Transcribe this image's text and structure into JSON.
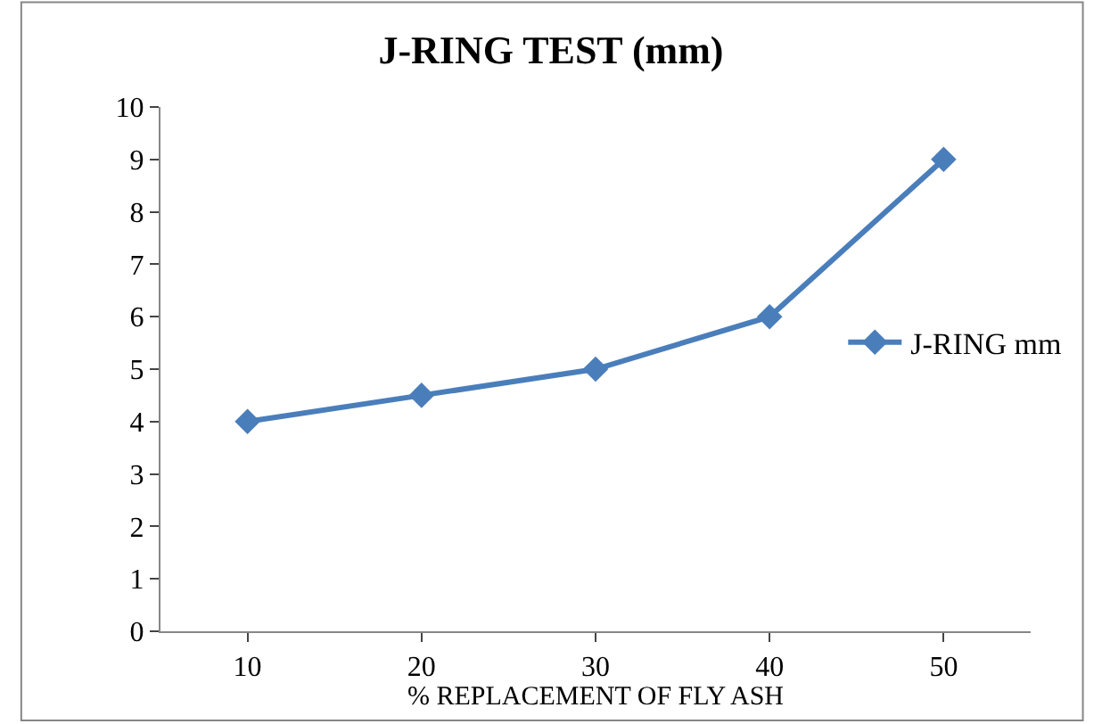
{
  "chart_data": {
    "type": "line",
    "title": "J-RING TEST (mm)",
    "xlabel": "% REPLACEMENT OF FLY ASH",
    "categories": [
      "10",
      "20",
      "30",
      "40",
      "50"
    ],
    "series": [
      {
        "name": "J-RING mm",
        "color": "#4a7ebb",
        "values": [
          4,
          4.5,
          5,
          6,
          9
        ]
      }
    ],
    "ylim": [
      0,
      10
    ],
    "yticks": [
      0,
      1,
      2,
      3,
      4,
      5,
      6,
      7,
      8,
      9,
      10
    ],
    "legend": "right",
    "marker": "diamond",
    "line_style": "solid"
  }
}
